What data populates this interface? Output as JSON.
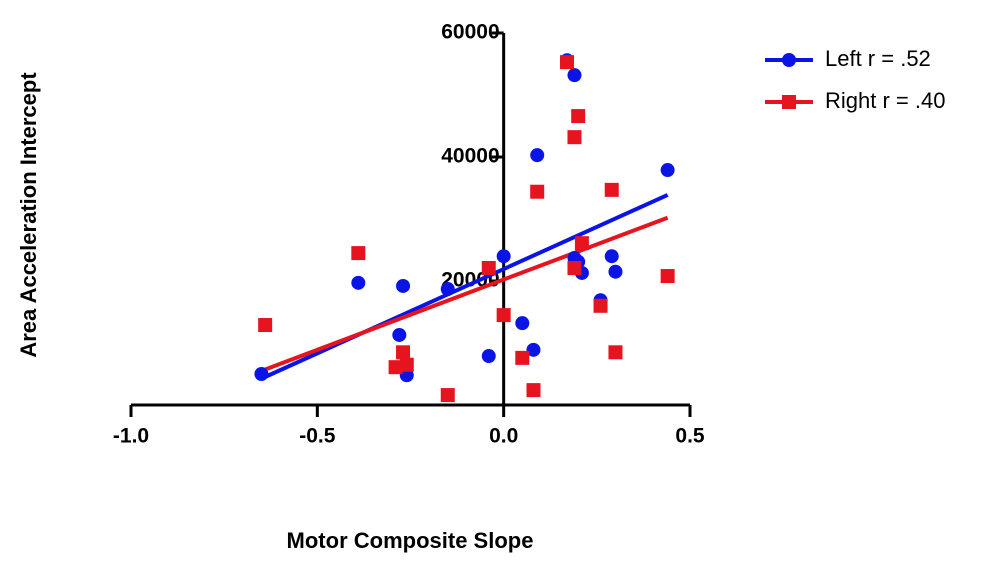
{
  "chart_data": {
    "type": "scatter",
    "xlabel": "Motor Composite Slope",
    "ylabel": "Area Acceleration Intercept",
    "xlim": [
      -1.0,
      0.5
    ],
    "ylim": [
      0,
      60000
    ],
    "xticks": [
      {
        "value": -1.0,
        "label": "-1.0"
      },
      {
        "value": -0.5,
        "label": "-0.5"
      },
      {
        "value": 0,
        "label": "0.0"
      },
      0.5
    ],
    "yticks": [
      20000,
      40000,
      60000
    ],
    "legend": "top-right",
    "series": [
      {
        "name": "Left r = .52",
        "color": "#0a14e6",
        "marker": "circle",
        "x": [
          -0.65,
          -0.39,
          -0.27,
          -0.28,
          -0.26,
          -0.15,
          -0.04,
          0.0,
          0.05,
          0.08,
          0.09,
          0.17,
          0.19,
          0.19,
          0.2,
          0.21,
          0.26,
          0.29,
          0.3,
          0.44
        ],
        "values": [
          5000,
          19700,
          19200,
          11300,
          4800,
          18700,
          7900,
          24000,
          13200,
          8900,
          40300,
          55600,
          53200,
          23700,
          23100,
          21300,
          16900,
          24000,
          21500,
          37900
        ]
      },
      {
        "name": "Right r = .40",
        "color": "#e6141e",
        "marker": "square",
        "x": [
          -0.64,
          -0.39,
          -0.27,
          -0.29,
          -0.26,
          -0.15,
          -0.04,
          0.0,
          0.05,
          0.08,
          0.09,
          0.17,
          0.19,
          0.19,
          0.2,
          0.21,
          0.26,
          0.29,
          0.3,
          0.44
        ],
        "values": [
          12900,
          24500,
          8500,
          6100,
          6500,
          1600,
          22100,
          14500,
          7600,
          2400,
          34400,
          55300,
          43200,
          22100,
          46600,
          26100,
          16000,
          34700,
          8500,
          20800
        ]
      }
    ]
  }
}
